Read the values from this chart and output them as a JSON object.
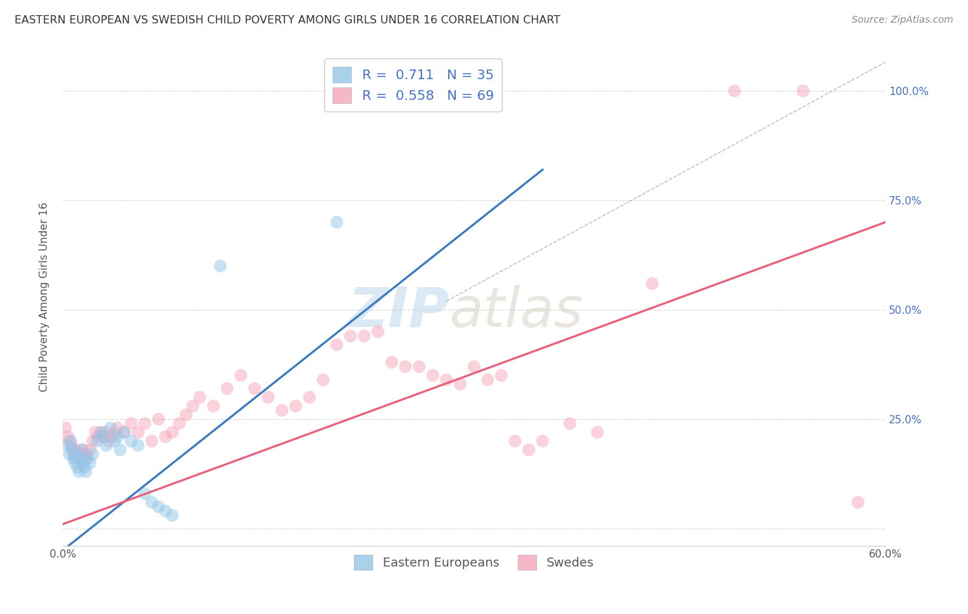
{
  "title": "EASTERN EUROPEAN VS SWEDISH CHILD POVERTY AMONG GIRLS UNDER 16 CORRELATION CHART",
  "source": "Source: ZipAtlas.com",
  "ylabel": "Child Poverty Among Girls Under 16",
  "xlim": [
    0,
    0.6
  ],
  "ylim": [
    -0.04,
    1.1
  ],
  "blue_color": "#93c6e8",
  "pink_color": "#f4a7ba",
  "blue_line_color": "#3a7bbf",
  "pink_line_color": "#e8607a",
  "blue_line": [
    [
      0.0,
      -0.05
    ],
    [
      0.35,
      0.82
    ]
  ],
  "pink_line": [
    [
      0.0,
      0.01
    ],
    [
      0.6,
      0.7
    ]
  ],
  "diag_line": [
    [
      0.28,
      0.52
    ],
    [
      0.62,
      1.1
    ]
  ],
  "blue_scatter": [
    [
      0.003,
      0.19
    ],
    [
      0.005,
      0.17
    ],
    [
      0.006,
      0.2
    ],
    [
      0.007,
      0.18
    ],
    [
      0.008,
      0.16
    ],
    [
      0.009,
      0.15
    ],
    [
      0.01,
      0.17
    ],
    [
      0.011,
      0.14
    ],
    [
      0.012,
      0.13
    ],
    [
      0.013,
      0.16
    ],
    [
      0.014,
      0.18
    ],
    [
      0.015,
      0.15
    ],
    [
      0.016,
      0.14
    ],
    [
      0.017,
      0.13
    ],
    [
      0.018,
      0.16
    ],
    [
      0.02,
      0.15
    ],
    [
      0.022,
      0.17
    ],
    [
      0.025,
      0.2
    ],
    [
      0.028,
      0.22
    ],
    [
      0.03,
      0.21
    ],
    [
      0.032,
      0.19
    ],
    [
      0.035,
      0.23
    ],
    [
      0.038,
      0.2
    ],
    [
      0.04,
      0.21
    ],
    [
      0.042,
      0.18
    ],
    [
      0.045,
      0.22
    ],
    [
      0.05,
      0.2
    ],
    [
      0.055,
      0.19
    ],
    [
      0.06,
      0.08
    ],
    [
      0.065,
      0.06
    ],
    [
      0.07,
      0.05
    ],
    [
      0.075,
      0.04
    ],
    [
      0.08,
      0.03
    ],
    [
      0.115,
      0.6
    ],
    [
      0.2,
      0.7
    ]
  ],
  "pink_scatter": [
    [
      0.002,
      0.23
    ],
    [
      0.004,
      0.21
    ],
    [
      0.005,
      0.2
    ],
    [
      0.006,
      0.19
    ],
    [
      0.007,
      0.18
    ],
    [
      0.008,
      0.17
    ],
    [
      0.009,
      0.16
    ],
    [
      0.01,
      0.18
    ],
    [
      0.011,
      0.17
    ],
    [
      0.012,
      0.16
    ],
    [
      0.013,
      0.17
    ],
    [
      0.014,
      0.15
    ],
    [
      0.015,
      0.18
    ],
    [
      0.016,
      0.17
    ],
    [
      0.017,
      0.16
    ],
    [
      0.018,
      0.17
    ],
    [
      0.02,
      0.18
    ],
    [
      0.022,
      0.2
    ],
    [
      0.024,
      0.22
    ],
    [
      0.026,
      0.21
    ],
    [
      0.028,
      0.22
    ],
    [
      0.03,
      0.21
    ],
    [
      0.032,
      0.22
    ],
    [
      0.034,
      0.2
    ],
    [
      0.036,
      0.21
    ],
    [
      0.038,
      0.22
    ],
    [
      0.04,
      0.23
    ],
    [
      0.045,
      0.22
    ],
    [
      0.05,
      0.24
    ],
    [
      0.055,
      0.22
    ],
    [
      0.06,
      0.24
    ],
    [
      0.065,
      0.2
    ],
    [
      0.07,
      0.25
    ],
    [
      0.075,
      0.21
    ],
    [
      0.08,
      0.22
    ],
    [
      0.085,
      0.24
    ],
    [
      0.09,
      0.26
    ],
    [
      0.095,
      0.28
    ],
    [
      0.1,
      0.3
    ],
    [
      0.11,
      0.28
    ],
    [
      0.12,
      0.32
    ],
    [
      0.13,
      0.35
    ],
    [
      0.14,
      0.32
    ],
    [
      0.15,
      0.3
    ],
    [
      0.16,
      0.27
    ],
    [
      0.17,
      0.28
    ],
    [
      0.18,
      0.3
    ],
    [
      0.19,
      0.34
    ],
    [
      0.2,
      0.42
    ],
    [
      0.21,
      0.44
    ],
    [
      0.22,
      0.44
    ],
    [
      0.23,
      0.45
    ],
    [
      0.24,
      0.38
    ],
    [
      0.25,
      0.37
    ],
    [
      0.26,
      0.37
    ],
    [
      0.27,
      0.35
    ],
    [
      0.28,
      0.34
    ],
    [
      0.29,
      0.33
    ],
    [
      0.3,
      0.37
    ],
    [
      0.31,
      0.34
    ],
    [
      0.32,
      0.35
    ],
    [
      0.33,
      0.2
    ],
    [
      0.34,
      0.18
    ],
    [
      0.35,
      0.2
    ],
    [
      0.37,
      0.24
    ],
    [
      0.39,
      0.22
    ],
    [
      0.43,
      0.56
    ],
    [
      0.49,
      1.0
    ],
    [
      0.54,
      1.0
    ],
    [
      0.58,
      0.06
    ]
  ],
  "watermark_zip": "ZIP",
  "watermark_atlas": "atlas",
  "background_color": "#ffffff",
  "grid_color": "#d0d0d0"
}
